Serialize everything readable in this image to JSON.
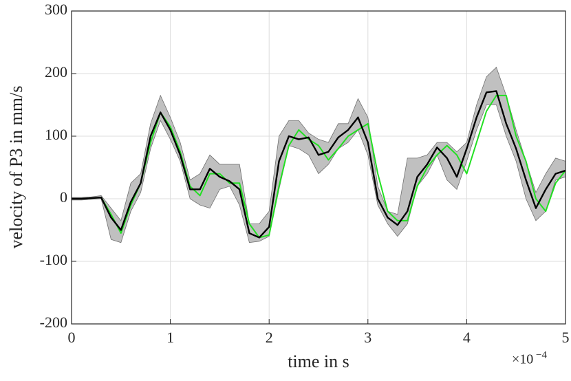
{
  "chart_data": {
    "type": "line",
    "xlabel": "time in s",
    "ylabel": "velocity of P3 in mm/s",
    "x_multiplier": {
      "base": "×10",
      "exponent": "−4"
    },
    "x": [
      0,
      0.1,
      0.2,
      0.3,
      0.4,
      0.5,
      0.6,
      0.7,
      0.8,
      0.9,
      1.0,
      1.1,
      1.2,
      1.3,
      1.4,
      1.5,
      1.6,
      1.7,
      1.8,
      1.9,
      2.0,
      2.1,
      2.2,
      2.3,
      2.4,
      2.5,
      2.6,
      2.7,
      2.8,
      2.9,
      3.0,
      3.1,
      3.2,
      3.3,
      3.4,
      3.5,
      3.6,
      3.7,
      3.8,
      3.9,
      4.0,
      4.1,
      4.2,
      4.3,
      4.4,
      4.5,
      4.6,
      4.7,
      4.8,
      4.9,
      5.0
    ],
    "band": {
      "color": "#c0c0c0",
      "upper": [
        2,
        2,
        3,
        5,
        -15,
        -35,
        25,
        40,
        120,
        165,
        130,
        90,
        30,
        40,
        70,
        55,
        55,
        55,
        -40,
        -40,
        -20,
        100,
        125,
        125,
        105,
        95,
        90,
        120,
        120,
        160,
        130,
        20,
        -20,
        -25,
        65,
        65,
        70,
        90,
        90,
        75,
        90,
        150,
        195,
        210,
        165,
        110,
        60,
        10,
        40,
        65,
        60
      ],
      "lower": [
        -2,
        -2,
        -1,
        0,
        -65,
        -70,
        -20,
        10,
        80,
        125,
        95,
        60,
        0,
        -10,
        -15,
        15,
        20,
        -10,
        -70,
        -68,
        -60,
        15,
        85,
        80,
        70,
        40,
        55,
        80,
        90,
        110,
        70,
        -10,
        -40,
        -60,
        -40,
        20,
        40,
        70,
        30,
        15,
        60,
        110,
        150,
        150,
        100,
        60,
        0,
        -35,
        -20,
        30,
        35
      ]
    },
    "series": [
      {
        "color": "#22e022",
        "values": [
          0,
          0,
          1,
          2,
          -25,
          -55,
          -10,
          25,
          90,
          138,
          115,
          75,
          20,
          5,
          40,
          40,
          25,
          25,
          -40,
          -62,
          -58,
          20,
          85,
          110,
          95,
          85,
          62,
          80,
          100,
          110,
          120,
          40,
          -20,
          -35,
          -35,
          20,
          50,
          70,
          85,
          70,
          40,
          90,
          140,
          165,
          165,
          100,
          60,
          0,
          -20,
          25,
          45
        ]
      },
      {
        "color": "#000000",
        "values": [
          0,
          0,
          1,
          2,
          -30,
          -50,
          -5,
          25,
          100,
          138,
          110,
          70,
          15,
          15,
          48,
          35,
          28,
          15,
          -55,
          -62,
          -45,
          60,
          100,
          95,
          98,
          70,
          75,
          98,
          110,
          130,
          90,
          0,
          -30,
          -42,
          -20,
          35,
          55,
          82,
          65,
          35,
          80,
          130,
          170,
          172,
          120,
          80,
          30,
          -15,
          15,
          40,
          45
        ]
      }
    ],
    "xlim": [
      0,
      5
    ],
    "xticks": [
      0,
      1,
      2,
      3,
      4,
      5
    ],
    "ylim": [
      -200,
      300
    ],
    "yticks": [
      -200,
      -100,
      0,
      100,
      200,
      300
    ],
    "grid": true
  }
}
